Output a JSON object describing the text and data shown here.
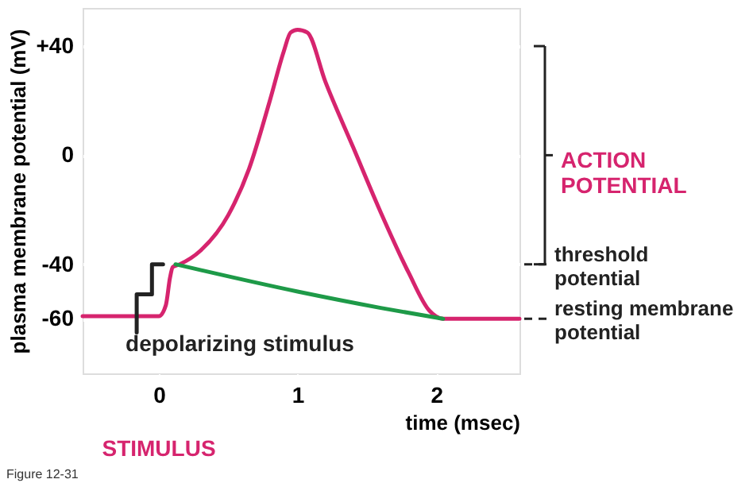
{
  "chart_data": {
    "type": "line",
    "xlabel": "time (msec)",
    "ylabel": "plasma membrane potential (mV)",
    "xlim": [
      -0.55,
      2.6
    ],
    "xticks": [
      0,
      1,
      2
    ],
    "ylim": [
      -80,
      54
    ],
    "yticks": [
      {
        "value": 40,
        "label": "+40"
      },
      0,
      -40,
      -60
    ],
    "grid": "y",
    "legend": false,
    "marker": "none",
    "line_style": "solid",
    "series": [
      {
        "color": "#d6246e",
        "x": [
          -0.55,
          0.0,
          0.05,
          0.08,
          0.1,
          0.15,
          0.3,
          0.5,
          0.65,
          0.8,
          0.9,
          0.95,
          1.0,
          1.07,
          1.2,
          1.4,
          1.6,
          1.8,
          1.95,
          2.05,
          2.6
        ],
        "values": [
          -59,
          -59,
          -55,
          -45,
          -41,
          -40,
          -35,
          -22,
          -5,
          20,
          38,
          45,
          46,
          45,
          27,
          3,
          -21,
          -43,
          -57,
          -60,
          -60
        ]
      },
      {
        "color": "#1e9a48",
        "x": [
          0.12,
          1.0,
          1.6,
          2.05
        ],
        "values": [
          -40,
          -50,
          -56,
          -60
        ]
      },
      {
        "color": "#222222",
        "x": [
          -0.16,
          -0.16,
          -0.05,
          -0.05,
          0.03
        ],
        "values": [
          -65,
          -51,
          -51,
          -40,
          -40
        ]
      }
    ],
    "ref_lines": [
      {
        "axis": "y",
        "value": -40,
        "label": "threshold potential",
        "line_style": "dashed",
        "color": "#222222"
      },
      {
        "axis": "y",
        "value": -60,
        "label": "resting membrane potential",
        "line_style": "dashed",
        "color": "#222222"
      }
    ],
    "annotations": [
      "depolarizing stimulus",
      "STIMULUS",
      "ACTION POTENTIAL",
      "Figure 12-31"
    ]
  }
}
